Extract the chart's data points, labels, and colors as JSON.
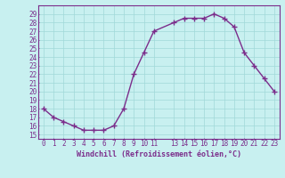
{
  "x": [
    0,
    1,
    2,
    3,
    4,
    5,
    6,
    7,
    8,
    9,
    10,
    11,
    13,
    14,
    15,
    16,
    17,
    18,
    19,
    20,
    21,
    22,
    23
  ],
  "y": [
    18,
    17,
    16.5,
    16,
    15.5,
    15.5,
    15.5,
    16,
    18,
    22,
    24.5,
    27,
    28,
    28.5,
    28.5,
    28.5,
    29,
    28.5,
    27.5,
    24.5,
    23,
    21.5,
    20
  ],
  "line_color": "#7B2D8B",
  "marker": "+",
  "marker_size": 4,
  "bg_color": "#c8f0f0",
  "grid_color": "#a0d8d8",
  "xlabel": "Windchill (Refroidissement éolien,°C)",
  "xlim": [
    -0.5,
    23.5
  ],
  "ylim": [
    14.5,
    30
  ],
  "xticks": [
    0,
    1,
    2,
    3,
    4,
    5,
    6,
    7,
    8,
    9,
    10,
    11,
    13,
    14,
    15,
    16,
    17,
    18,
    19,
    20,
    21,
    22,
    23
  ],
  "yticks": [
    15,
    16,
    17,
    18,
    19,
    20,
    21,
    22,
    23,
    24,
    25,
    26,
    27,
    28,
    29
  ],
  "tick_color": "#7B2D8B",
  "spine_color": "#7B2D8B",
  "xlabel_fontsize": 6,
  "tick_fontsize": 5.5,
  "line_width": 1.0
}
